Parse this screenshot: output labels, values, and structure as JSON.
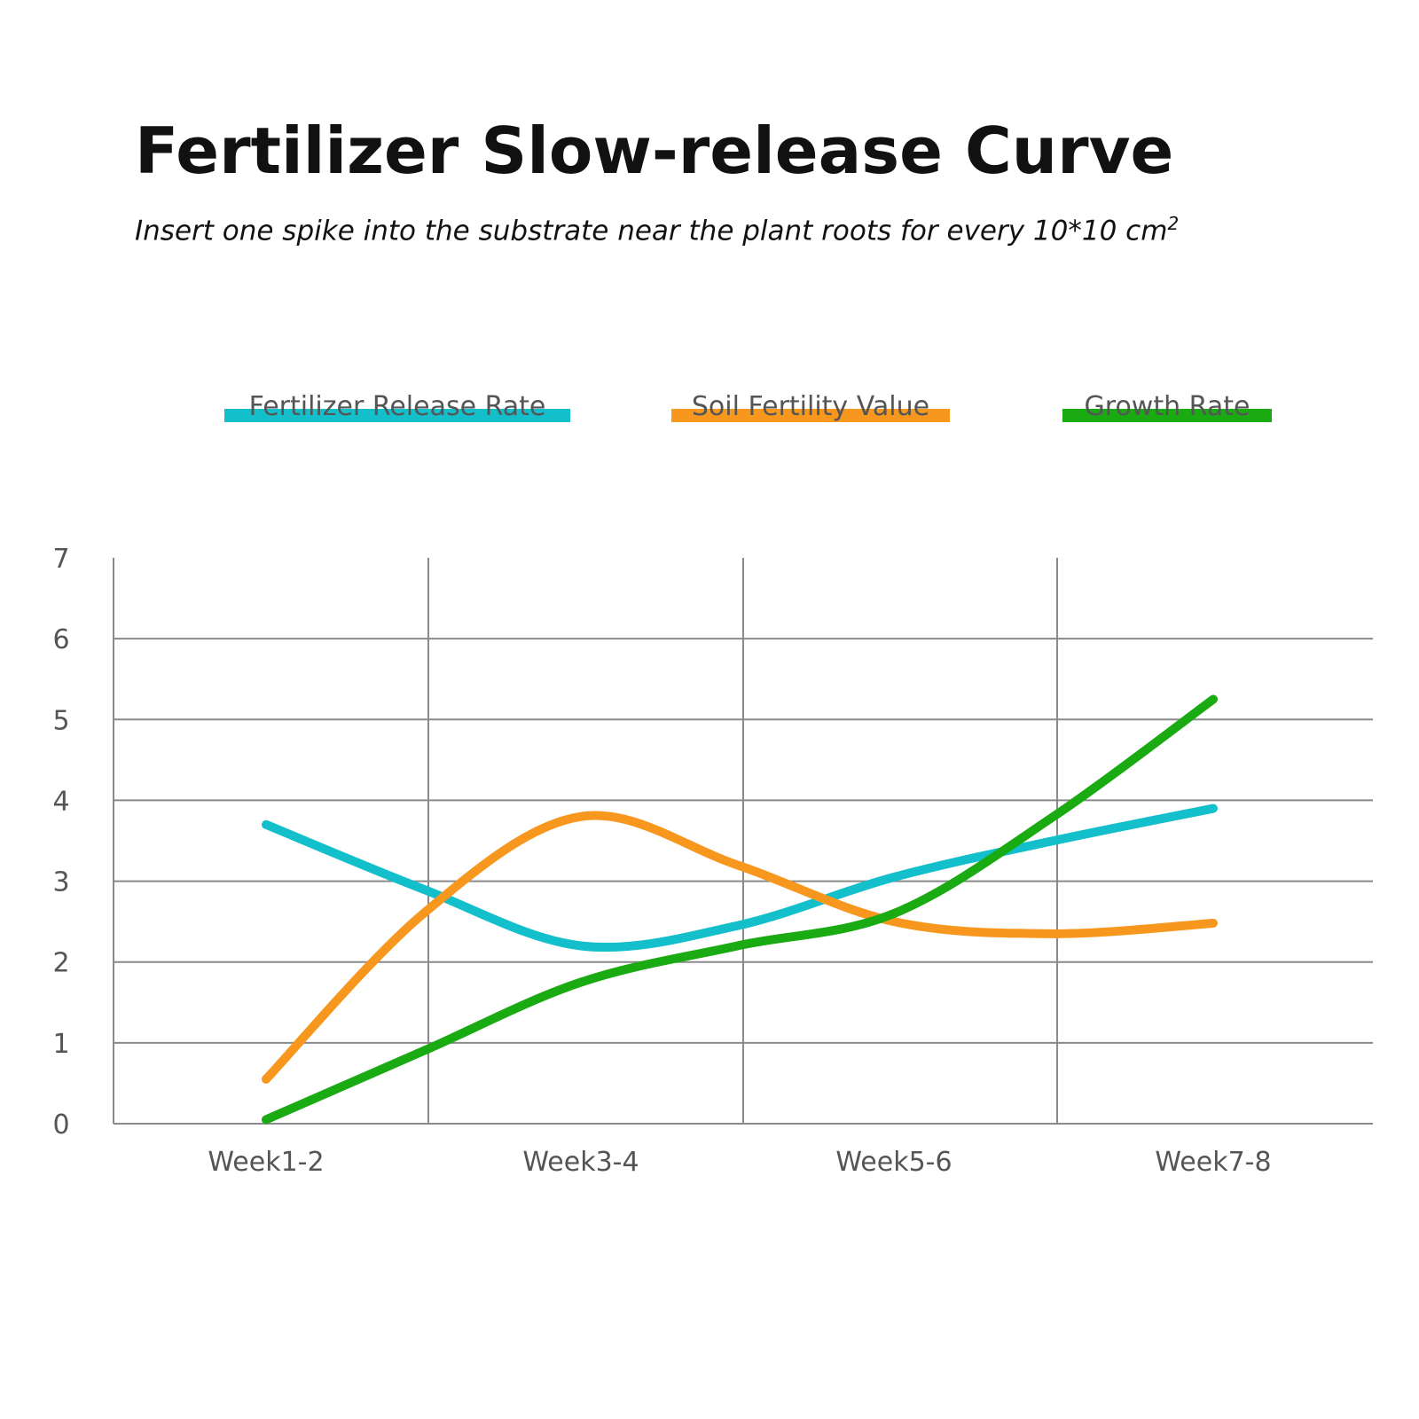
{
  "title": "Fertilizer Slow-release Curve",
  "subtitle": "Insert one spike into the substrate near the plant roots for every 10*10 cm",
  "subtitle_sup": "2",
  "chart_data": {
    "type": "line",
    "categories": [
      "Week1-2",
      "Week3-4",
      "Week5-6",
      "Week7-8"
    ],
    "ylim": [
      0,
      7
    ],
    "yticks": [
      0,
      1,
      2,
      3,
      4,
      5,
      6,
      7
    ],
    "grid": true,
    "legend": "top",
    "smooth": true,
    "series": [
      {
        "name": "Fertilizer Release Rate",
        "color": "#13BFCB",
        "x": [
          0.0,
          0.5,
          1.0,
          1.5,
          2.0,
          2.5,
          3.0
        ],
        "values": [
          3.7,
          2.9,
          2.2,
          2.45,
          3.05,
          3.5,
          3.9
        ]
      },
      {
        "name": "Soil Fertility Value",
        "color": "#F7971E",
        "x": [
          0.0,
          0.5,
          1.0,
          1.5,
          2.0,
          2.5,
          3.0
        ],
        "values": [
          0.55,
          2.6,
          3.8,
          3.2,
          2.5,
          2.35,
          2.48
        ]
      },
      {
        "name": "Growth Rate",
        "color": "#1AAA12",
        "x": [
          0.0,
          0.5,
          1.0,
          1.5,
          2.0,
          2.5,
          3.0
        ],
        "values": [
          0.05,
          0.9,
          1.75,
          2.2,
          2.6,
          3.8,
          5.25
        ]
      }
    ]
  }
}
